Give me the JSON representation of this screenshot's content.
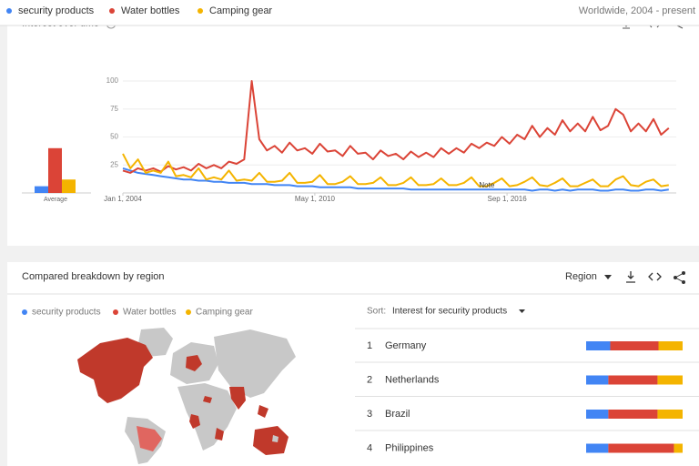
{
  "header": {
    "scope": "Worldwide, 2004 - present"
  },
  "chart_data": {
    "type": "line",
    "title": "Interest over time",
    "x": [
      "2004-01-01",
      "2004-04-01",
      "2004-07-01",
      "2004-10-01",
      "2005-01-01",
      "2005-04-01",
      "2005-07-01",
      "2005-10-01",
      "2006-01-01",
      "2006-04-01",
      "2006-07-01",
      "2006-10-01",
      "2007-01-01",
      "2007-04-01",
      "2007-07-01",
      "2007-10-01",
      "2008-01-01",
      "2008-04-01",
      "2008-07-01",
      "2008-10-01",
      "2009-01-01",
      "2009-04-01",
      "2009-07-01",
      "2009-10-01",
      "2010-01-01",
      "2010-04-01",
      "2010-07-01",
      "2010-10-01",
      "2011-01-01",
      "2011-04-01",
      "2011-07-01",
      "2011-10-01",
      "2012-01-01",
      "2012-04-01",
      "2012-07-01",
      "2012-10-01",
      "2013-01-01",
      "2013-04-01",
      "2013-07-01",
      "2013-10-01",
      "2014-01-01",
      "2014-04-01",
      "2014-07-01",
      "2014-10-01",
      "2015-01-01",
      "2015-04-01",
      "2015-07-01",
      "2015-10-01",
      "2016-01-01",
      "2016-04-01",
      "2016-07-01",
      "2016-10-01",
      "2017-01-01",
      "2017-04-01",
      "2017-07-01",
      "2017-10-01",
      "2018-01-01",
      "2018-04-01",
      "2018-07-01",
      "2018-10-01",
      "2019-01-01",
      "2019-04-01",
      "2019-07-01",
      "2019-10-01",
      "2020-01-01",
      "2020-04-01",
      "2020-07-01",
      "2020-10-01",
      "2021-01-01",
      "2021-04-01",
      "2021-07-01",
      "2021-10-01",
      "2022-01-01"
    ],
    "xlim": [
      "2004-01-01",
      "2022-04-01"
    ],
    "xticks": [
      {
        "value": "2004-01-01",
        "label": "Jan 1, 2004"
      },
      {
        "value": "2010-05-01",
        "label": "May 1, 2010"
      },
      {
        "value": "2016-09-01",
        "label": "Sep 1, 2016"
      }
    ],
    "ylim": [
      0,
      100
    ],
    "yticks": [
      25,
      50,
      75,
      100
    ],
    "grid": true,
    "series": [
      {
        "name": "security products",
        "color": "#4285f4",
        "values": [
          22,
          20,
          18,
          17,
          16,
          15,
          14,
          13,
          12,
          12,
          11,
          11,
          10,
          10,
          9,
          9,
          9,
          8,
          8,
          8,
          7,
          7,
          7,
          6,
          6,
          6,
          5,
          5,
          5,
          5,
          5,
          4,
          4,
          4,
          4,
          4,
          4,
          4,
          3,
          3,
          3,
          3,
          3,
          3,
          3,
          3,
          3,
          3,
          3,
          3,
          3,
          3,
          3,
          3,
          2,
          3,
          3,
          2,
          3,
          2,
          3,
          3,
          3,
          2,
          2,
          3,
          3,
          2,
          2,
          3,
          3,
          2,
          3
        ]
      },
      {
        "name": "Water bottles",
        "color": "#db4437",
        "values": [
          20,
          18,
          22,
          20,
          22,
          19,
          24,
          21,
          23,
          20,
          26,
          22,
          25,
          22,
          28,
          26,
          30,
          100,
          48,
          38,
          42,
          36,
          45,
          38,
          40,
          35,
          44,
          37,
          38,
          33,
          42,
          35,
          36,
          30,
          38,
          33,
          35,
          30,
          37,
          32,
          36,
          32,
          40,
          35,
          40,
          36,
          44,
          40,
          45,
          42,
          50,
          44,
          52,
          48,
          60,
          50,
          58,
          52,
          65,
          55,
          62,
          55,
          68,
          56,
          60,
          75,
          70,
          55,
          62,
          55,
          66,
          52,
          58
        ]
      },
      {
        "name": "Camping gear",
        "color": "#f4b400",
        "values": [
          35,
          22,
          30,
          18,
          20,
          18,
          28,
          15,
          16,
          14,
          22,
          12,
          14,
          12,
          20,
          11,
          12,
          11,
          18,
          10,
          10,
          11,
          18,
          9,
          9,
          10,
          16,
          8,
          8,
          10,
          15,
          8,
          8,
          9,
          14,
          7,
          7,
          9,
          14,
          7,
          7,
          8,
          13,
          7,
          7,
          9,
          14,
          6,
          6,
          9,
          13,
          6,
          7,
          10,
          14,
          7,
          6,
          9,
          13,
          6,
          6,
          9,
          12,
          6,
          6,
          12,
          15,
          7,
          6,
          10,
          12,
          6,
          7
        ]
      }
    ],
    "averages": [
      6,
      40,
      12
    ],
    "averages_label": "Average",
    "annotations": [
      {
        "x": "2016-01-01",
        "label": "Note"
      }
    ]
  },
  "region": {
    "title": "Compared breakdown by region",
    "view": "Region",
    "sort_label": "Sort:",
    "sort_by": "Interest for security products",
    "rows": [
      {
        "rank": "1",
        "name": "Germany",
        "shares": [
          25,
          50,
          25
        ]
      },
      {
        "rank": "2",
        "name": "Netherlands",
        "shares": [
          23,
          51,
          26
        ]
      },
      {
        "rank": "3",
        "name": "Brazil",
        "shares": [
          23,
          51,
          26
        ]
      },
      {
        "rank": "4",
        "name": "Philippines",
        "shares": [
          23,
          68,
          9
        ]
      }
    ]
  }
}
